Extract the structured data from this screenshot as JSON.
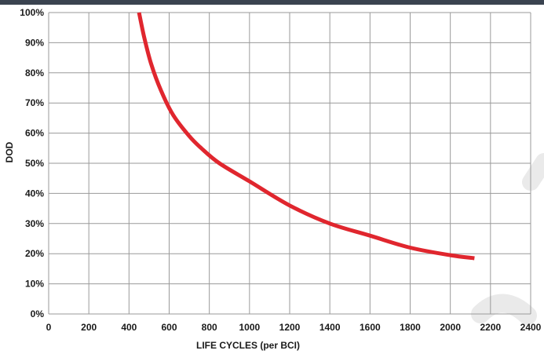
{
  "colors": {
    "top_bar": "#3a4350",
    "curve": "#e0262e",
    "grid": "#9a9a9a",
    "axis_text": "#1a1a1a",
    "watermark": "#e8e8e8"
  },
  "chart_data": {
    "type": "line",
    "title": "",
    "xlabel": "LIFE CYCLES (per BCI)",
    "ylabel": "DOD",
    "xlim": [
      0,
      2400
    ],
    "ylim": [
      0,
      100
    ],
    "x_ticks": [
      "0",
      "200",
      "400",
      "600",
      "800",
      "1000",
      "1200",
      "1400",
      "1600",
      "1800",
      "2000",
      "2200",
      "2400"
    ],
    "y_ticks": [
      "0%",
      "10%",
      "20%",
      "30%",
      "40%",
      "50%",
      "60%",
      "70%",
      "80%",
      "90%",
      "100%"
    ],
    "grid": true,
    "series": [
      {
        "x": [
          450,
          475,
          510,
          560,
          620,
          700,
          760,
          850,
          1000,
          1200,
          1400,
          1600,
          1800,
          2000,
          2120
        ],
        "y": [
          100,
          92,
          83,
          74,
          66,
          59,
          55,
          50,
          44,
          36,
          30,
          26,
          22,
          19.5,
          18.5
        ]
      }
    ]
  }
}
